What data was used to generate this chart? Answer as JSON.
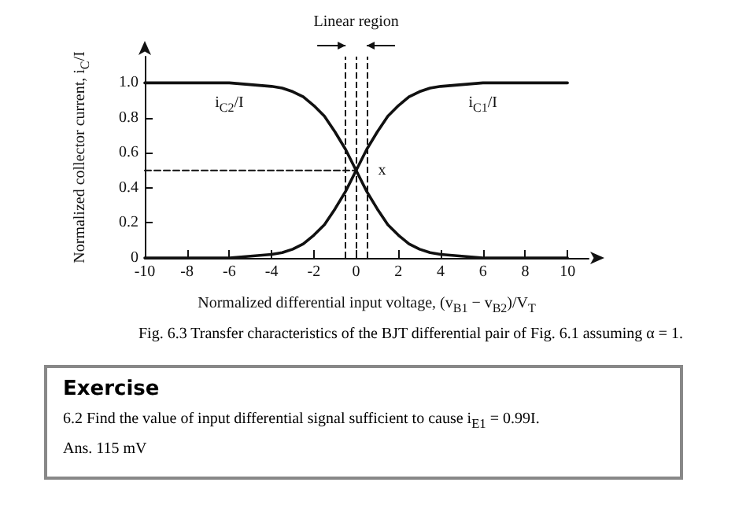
{
  "chart_data": {
    "type": "line",
    "xlabel": "Normalized differential input voltage, (v$_{B1}$ − v$_{B2}$)/V$_{T}$",
    "ylabel": "Normalized collector current, i$_{C}$/I",
    "x": [
      -10,
      -9,
      -8,
      -7,
      -6,
      -5,
      -4,
      -3.5,
      -3,
      -2.5,
      -2,
      -1.5,
      -1,
      -0.5,
      0,
      0.5,
      1,
      1.5,
      2,
      2.5,
      3,
      3.5,
      4,
      5,
      6,
      7,
      8,
      9,
      10
    ],
    "series": [
      {
        "name": "i$_{C2}$/I",
        "color": "#111111",
        "values": [
          1,
          1,
          1,
          1,
          1,
          0.99,
          0.98,
          0.97,
          0.95,
          0.92,
          0.87,
          0.81,
          0.72,
          0.62,
          0.5,
          0.38,
          0.28,
          0.19,
          0.13,
          0.08,
          0.05,
          0.03,
          0.02,
          0.01,
          0,
          0,
          0,
          0,
          0
        ]
      },
      {
        "name": "i$_{C1}$/I",
        "color": "#111111",
        "values": [
          0,
          0,
          0,
          0,
          0,
          0.01,
          0.02,
          0.03,
          0.05,
          0.08,
          0.13,
          0.19,
          0.28,
          0.38,
          0.5,
          0.62,
          0.72,
          0.81,
          0.87,
          0.92,
          0.95,
          0.97,
          0.98,
          0.99,
          1,
          1,
          1,
          1,
          1
        ]
      },
      {
        "type": "line",
        "color": "#111111",
        "line_style": "dashed",
        "x": [
          -10,
          0
        ],
        "values": [
          0.5,
          0.5
        ]
      }
    ],
    "xlim": [
      -10,
      11
    ],
    "xticks": [
      -10,
      -8,
      -6,
      -4,
      -2,
      0,
      2,
      4,
      6,
      8,
      10
    ],
    "ylim": [
      0,
      1.15
    ],
    "yticks": [
      0,
      0.2,
      0.4,
      0.6,
      0.8,
      {
        "value": 1,
        "label": "1.0"
      }
    ],
    "ref_lines": [
      {
        "axis": "x",
        "value": -0.5,
        "line_style": "dashed"
      },
      {
        "axis": "x",
        "value": 0,
        "line_style": "dashed"
      },
      {
        "axis": "x",
        "value": 0.5,
        "line_style": "dashed"
      }
    ],
    "annotations": [
      {
        "text": "x",
        "x": 0,
        "y": 0.5
      },
      "Linear region",
      "Fig. 6.3  Transfer characteristics of the BJT differential pair of Fig. 6.1 assuming α = 1.",
      "Exercise",
      "6.2  Find the value of input differential signal sufficient to cause i$_{E1}$ = 0.99I.",
      "Ans.  115 mV"
    ],
    "grid": false,
    "marker": "none",
    "line_style": "solid"
  }
}
